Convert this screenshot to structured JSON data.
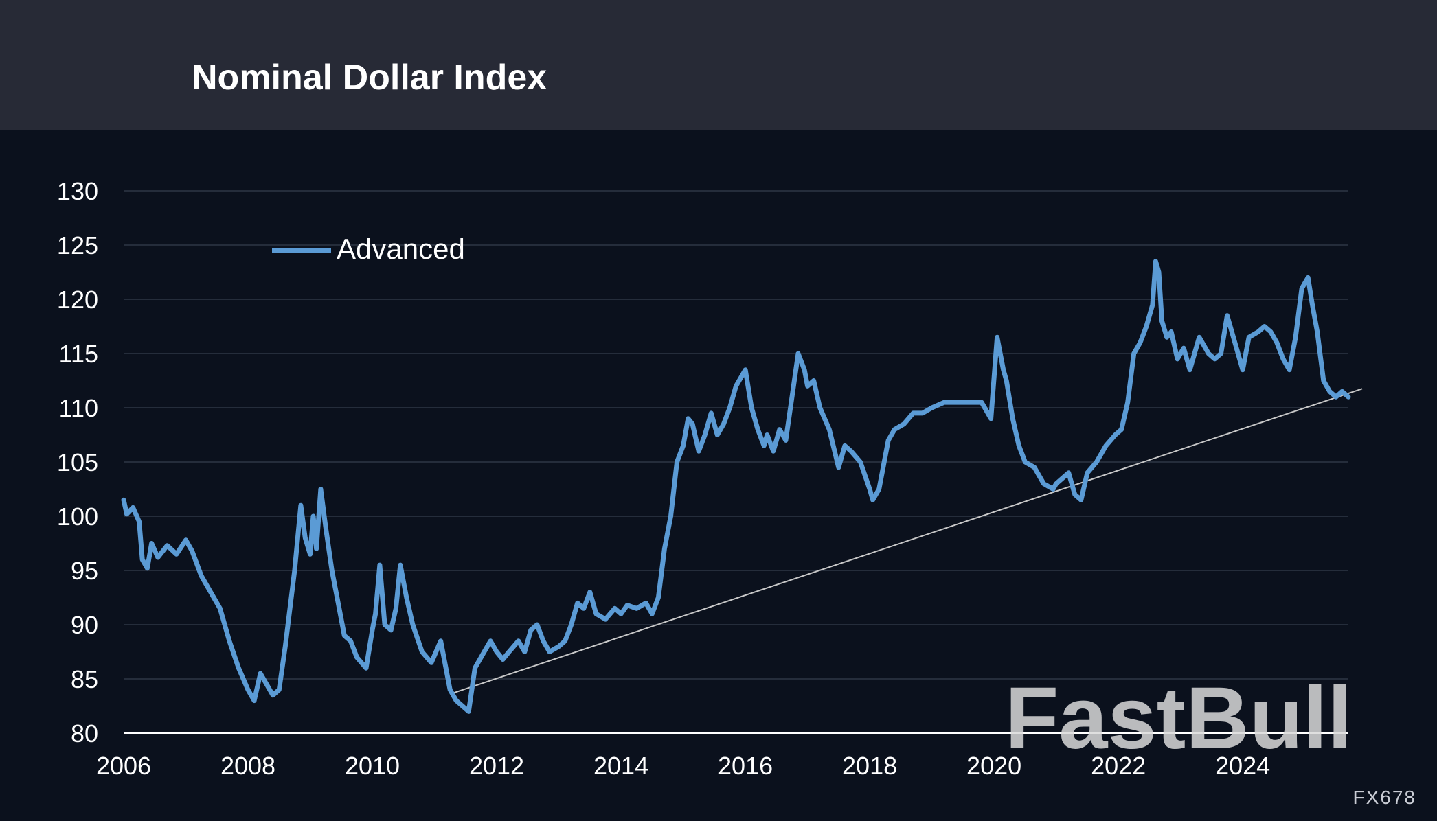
{
  "title": "Nominal Dollar Index",
  "footnote": "FX678",
  "watermark": "FastBull",
  "colors": {
    "header_bg": "#272a36",
    "plot_bg": "#0b111d",
    "series": "#5b9bd5",
    "trendline": "#c8c8c8",
    "gridline": "#252d3b",
    "text": "#ffffff"
  },
  "chart_data": {
    "type": "line",
    "title": "Nominal Dollar Index",
    "xlabel": "",
    "ylabel": "",
    "xlim": [
      2006,
      2025.7
    ],
    "ylim": [
      80,
      130
    ],
    "x_ticks": [
      2006,
      2008,
      2010,
      2012,
      2014,
      2016,
      2018,
      2020,
      2022,
      2024
    ],
    "x_tick_labels": [
      "2006",
      "2008",
      "2010",
      "2012",
      "2014",
      "2016",
      "2018",
      "2020",
      "2022",
      "2024"
    ],
    "y_ticks": [
      80,
      85,
      90,
      95,
      100,
      105,
      110,
      115,
      120,
      125,
      130
    ],
    "y_tick_labels": [
      "80",
      "85",
      "90",
      "95",
      "100",
      "105",
      "110",
      "115",
      "120",
      "125",
      "130"
    ],
    "grid": true,
    "legend_position": "top-left",
    "series": [
      {
        "name": "Advanced",
        "x": [
          2006.0,
          2006.05,
          2006.15,
          2006.25,
          2006.3,
          2006.38,
          2006.45,
          2006.55,
          2006.7,
          2006.85,
          2007.0,
          2007.1,
          2007.25,
          2007.4,
          2007.55,
          2007.7,
          2007.85,
          2008.0,
          2008.1,
          2008.2,
          2008.3,
          2008.4,
          2008.5,
          2008.6,
          2008.75,
          2008.85,
          2008.92,
          2009.0,
          2009.05,
          2009.1,
          2009.17,
          2009.25,
          2009.35,
          2009.45,
          2009.55,
          2009.65,
          2009.75,
          2009.9,
          2010.0,
          2010.05,
          2010.12,
          2010.2,
          2010.3,
          2010.38,
          2010.45,
          2010.55,
          2010.65,
          2010.8,
          2010.95,
          2011.1,
          2011.25,
          2011.35,
          2011.45,
          2011.55,
          2011.65,
          2011.75,
          2011.9,
          2012.0,
          2012.1,
          2012.2,
          2012.35,
          2012.45,
          2012.55,
          2012.65,
          2012.75,
          2012.85,
          2013.0,
          2013.1,
          2013.2,
          2013.3,
          2013.4,
          2013.5,
          2013.6,
          2013.75,
          2013.9,
          2014.0,
          2014.1,
          2014.25,
          2014.4,
          2014.5,
          2014.6,
          2014.7,
          2014.8,
          2014.9,
          2015.0,
          2015.08,
          2015.15,
          2015.25,
          2015.35,
          2015.45,
          2015.55,
          2015.65,
          2015.75,
          2015.85,
          2016.0,
          2016.1,
          2016.2,
          2016.3,
          2016.35,
          2016.45,
          2016.55,
          2016.65,
          2016.75,
          2016.85,
          2016.95,
          2017.0,
          2017.1,
          2017.2,
          2017.35,
          2017.5,
          2017.6,
          2017.7,
          2017.85,
          2018.0,
          2018.05,
          2018.15,
          2018.3,
          2018.4,
          2018.55,
          2018.7,
          2018.85,
          2019.0,
          2019.2,
          2019.4,
          2019.6,
          2019.8,
          2019.95,
          2020.05,
          2020.15,
          2020.2,
          2020.3,
          2020.4,
          2020.5,
          2020.65,
          2020.8,
          2020.95,
          2021.0,
          2021.1,
          2021.2,
          2021.3,
          2021.4,
          2021.5,
          2021.65,
          2021.8,
          2021.95,
          2022.05,
          2022.15,
          2022.25,
          2022.35,
          2022.45,
          2022.55,
          2022.6,
          2022.65,
          2022.7,
          2022.78,
          2022.85,
          2022.95,
          2023.05,
          2023.15,
          2023.3,
          2023.45,
          2023.55,
          2023.65,
          2023.75,
          2023.85,
          2024.0,
          2024.1,
          2024.25,
          2024.35,
          2024.45,
          2024.55,
          2024.65,
          2024.75,
          2024.85,
          2024.95,
          2025.05,
          2025.12,
          2025.2,
          2025.3,
          2025.4,
          2025.5,
          2025.6,
          2025.7
        ],
        "y": [
          101.5,
          100.2,
          100.8,
          99.5,
          96.0,
          95.2,
          97.5,
          96.2,
          97.3,
          96.5,
          97.8,
          96.8,
          94.5,
          93.0,
          91.5,
          88.5,
          86.0,
          84.0,
          83.0,
          85.5,
          84.5,
          83.5,
          84.0,
          88.0,
          95.0,
          101.0,
          98.0,
          96.5,
          100.0,
          97.0,
          102.5,
          99.0,
          95.0,
          92.0,
          89.0,
          88.5,
          87.0,
          86.0,
          89.5,
          91.0,
          95.5,
          90.0,
          89.5,
          91.5,
          95.5,
          92.5,
          90.0,
          87.5,
          86.5,
          88.5,
          84.0,
          83.0,
          82.5,
          82.0,
          86.0,
          87.0,
          88.5,
          87.5,
          86.8,
          87.5,
          88.5,
          87.5,
          89.5,
          90.0,
          88.5,
          87.5,
          88.0,
          88.5,
          90.0,
          92.0,
          91.5,
          93.0,
          91.0,
          90.5,
          91.5,
          91.0,
          91.8,
          91.5,
          92.0,
          91.0,
          92.5,
          97.0,
          100.0,
          105.0,
          106.5,
          109.0,
          108.5,
          106.0,
          107.5,
          109.5,
          107.5,
          108.5,
          110.0,
          112.0,
          113.5,
          110.0,
          108.0,
          106.5,
          107.5,
          106.0,
          108.0,
          107.0,
          111.0,
          115.0,
          113.5,
          112.0,
          112.5,
          110.0,
          108.0,
          104.5,
          106.5,
          106.0,
          105.0,
          102.5,
          101.5,
          102.5,
          107.0,
          108.0,
          108.5,
          109.5,
          109.5,
          110.0,
          110.5,
          110.5,
          110.5,
          110.5,
          109.0,
          116.5,
          113.5,
          112.5,
          109.0,
          106.5,
          105.0,
          104.5,
          103.0,
          102.5,
          103.0,
          103.5,
          104.0,
          102.0,
          101.5,
          104.0,
          105.0,
          106.5,
          107.5,
          108.0,
          110.5,
          115.0,
          116.0,
          117.5,
          119.5,
          123.5,
          122.5,
          118.0,
          116.5,
          117.0,
          114.5,
          115.5,
          113.5,
          116.5,
          115.0,
          114.5,
          115.0,
          118.5,
          116.5,
          113.5,
          116.5,
          117.0,
          117.5,
          117.0,
          116.0,
          114.5,
          113.5,
          116.5,
          121.0,
          122.0,
          119.5,
          117.0,
          112.5,
          111.5,
          111.0,
          111.5,
          111.0
        ]
      }
    ],
    "trendline": {
      "x": [
        2011.3,
        2025.7
      ],
      "y": [
        83.7,
        111.5
      ]
    }
  }
}
